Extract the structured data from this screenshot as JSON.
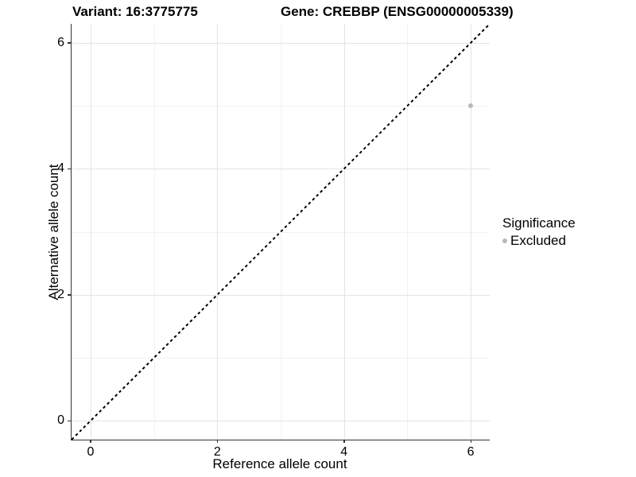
{
  "titles": {
    "variant": "Variant: 16:3775775",
    "gene": "Gene: CREBBP (ENSG00000005339)"
  },
  "axes": {
    "x": {
      "label": "Reference allele count",
      "tick_labels": [
        "0",
        "2",
        "4",
        "6"
      ]
    },
    "y": {
      "label": "Alternative allele count",
      "tick_labels": [
        "0",
        "2",
        "4",
        "6"
      ]
    }
  },
  "legend": {
    "title": "Significance",
    "items": [
      {
        "label": "Excluded",
        "color": "#b8b8b8"
      }
    ]
  },
  "colors": {
    "background": "#ffffff",
    "axis_line": "#333333",
    "grid_major": "#e4e4e4",
    "grid_minor": "#f2f2f2",
    "reference_line": "#000000",
    "point": "#b8b8b8",
    "text": "#000000"
  },
  "chart_data": {
    "type": "scatter",
    "title": "Variant: 16:3775775 | Gene: CREBBP (ENSG00000005339)",
    "xlabel": "Reference allele count",
    "ylabel": "Alternative allele count",
    "xlim": [
      -0.3,
      6.3
    ],
    "ylim": [
      -0.3,
      6.3
    ],
    "x_major_ticks": [
      0,
      2,
      4,
      6
    ],
    "x_minor_ticks": [
      1,
      3,
      5
    ],
    "y_major_ticks": [
      0,
      2,
      4,
      6
    ],
    "y_minor_ticks": [
      1,
      3,
      5
    ],
    "grid": true,
    "legend_position": "right",
    "series": [
      {
        "name": "Excluded",
        "color": "#b8b8b8",
        "point_size": 6,
        "points": [
          {
            "x": 6,
            "y": 5
          }
        ]
      }
    ],
    "reference_line": {
      "kind": "abline",
      "slope": 1,
      "intercept": 0,
      "style": "dashed",
      "color": "#000000"
    }
  }
}
